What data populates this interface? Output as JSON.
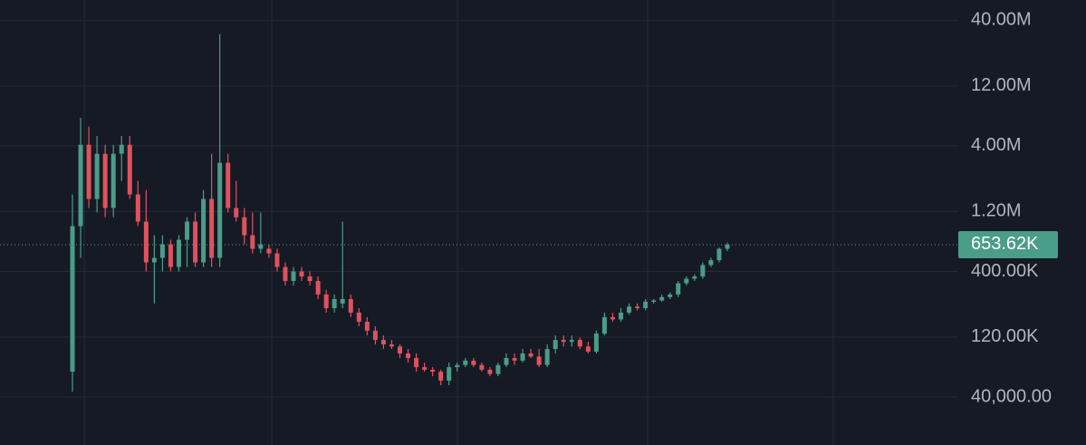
{
  "chart_data": {
    "type": "candlestick",
    "log_scale": true,
    "grid": true,
    "up_color": "#4a9d88",
    "down_color": "#e0525d",
    "ylim": [
      16600,
      58000000
    ],
    "yticks": [
      {
        "value": 40000,
        "label": "40,000.00"
      },
      {
        "value": 120000,
        "label": "120.00K"
      },
      {
        "value": 400000,
        "label": "400.00K"
      },
      {
        "value": 1200000,
        "label": "1.20M"
      },
      {
        "value": 4000000,
        "label": "4.00M"
      },
      {
        "value": 12000000,
        "label": "12.00M"
      },
      {
        "value": 40000000,
        "label": "40.00M"
      }
    ],
    "last_price": {
      "value": 653620,
      "label": "653.62K"
    },
    "open": [
      63700,
      918000,
      4080000,
      1510000,
      3460000,
      1280000,
      3460000,
      4080000,
      1640000,
      998000,
      472000,
      513000,
      658000,
      434000,
      715000,
      998000,
      472000,
      1510000,
      513000,
      2930000,
      1280000,
      1080000,
      777000,
      606000,
      606000,
      557000,
      434000,
      336000,
      400000,
      365000,
      336000,
      262000,
      204000,
      222000,
      241000,
      188000,
      159000,
      135000,
      114000,
      105000,
      101000,
      88900,
      81700,
      69200,
      66000,
      63700,
      54000,
      69200,
      72000,
      78000,
      72000,
      66000,
      61000,
      72000,
      81700,
      78000,
      88900,
      84000,
      72000,
      96500,
      114000,
      110000,
      114000,
      101000,
      92000,
      128000,
      173000,
      166000,
      188000,
      210000,
      204000,
      230000,
      235000,
      250000,
      262000,
      322000,
      350000,
      365000,
      450000,
      492000,
      606000
    ],
    "high": [
      1640000,
      6700000,
      5700000,
      4800000,
      4080000,
      4080000,
      4800000,
      4800000,
      2100000,
      1780000,
      777000,
      777000,
      715000,
      777000,
      1080000,
      1180000,
      1780000,
      3460000,
      31000000,
      3460000,
      2100000,
      1280000,
      1180000,
      1180000,
      658000,
      606000,
      472000,
      434000,
      434000,
      400000,
      365000,
      285000,
      262000,
      998000,
      262000,
      204000,
      173000,
      146000,
      124000,
      114000,
      105000,
      96500,
      88900,
      75200,
      69200,
      66000,
      75200,
      75200,
      81700,
      81700,
      75200,
      69200,
      75200,
      88900,
      88900,
      96500,
      96500,
      96500,
      105000,
      124000,
      124000,
      124000,
      119000,
      110000,
      135000,
      188000,
      188000,
      204000,
      222000,
      222000,
      241000,
      241000,
      262000,
      273000,
      336000,
      365000,
      380000,
      472000,
      513000,
      620000,
      680000
    ],
    "low": [
      44000,
      513000,
      1280000,
      1180000,
      1080000,
      1080000,
      2100000,
      1510000,
      918000,
      400000,
      222000,
      400000,
      400000,
      400000,
      434000,
      434000,
      434000,
      434000,
      434000,
      1180000,
      998000,
      658000,
      557000,
      557000,
      513000,
      400000,
      309000,
      309000,
      336000,
      309000,
      241000,
      188000,
      188000,
      204000,
      173000,
      146000,
      124000,
      105000,
      96500,
      96500,
      81700,
      75200,
      63700,
      63700,
      58600,
      49600,
      49600,
      63700,
      69200,
      69200,
      63700,
      58600,
      58600,
      69200,
      72000,
      75200,
      81700,
      69200,
      69200,
      88900,
      101000,
      101000,
      96500,
      88900,
      88900,
      124000,
      159000,
      159000,
      181000,
      196000,
      196000,
      222000,
      230000,
      241000,
      250000,
      309000,
      336000,
      350000,
      434000,
      472000,
      580000
    ],
    "close": [
      918000,
      4080000,
      1510000,
      3460000,
      1280000,
      3460000,
      4080000,
      1640000,
      998000,
      472000,
      513000,
      658000,
      434000,
      715000,
      998000,
      472000,
      1510000,
      513000,
      2930000,
      1280000,
      1080000,
      777000,
      606000,
      658000,
      557000,
      434000,
      336000,
      400000,
      365000,
      336000,
      262000,
      204000,
      241000,
      241000,
      188000,
      159000,
      135000,
      114000,
      105000,
      101000,
      88900,
      81700,
      69200,
      66000,
      63700,
      54000,
      69200,
      72000,
      78000,
      72000,
      66000,
      61000,
      72000,
      81700,
      78000,
      88900,
      84000,
      72000,
      96500,
      114000,
      110000,
      114000,
      101000,
      92000,
      128000,
      173000,
      166000,
      188000,
      210000,
      204000,
      230000,
      235000,
      250000,
      262000,
      322000,
      350000,
      365000,
      450000,
      492000,
      606000,
      653620
    ]
  }
}
